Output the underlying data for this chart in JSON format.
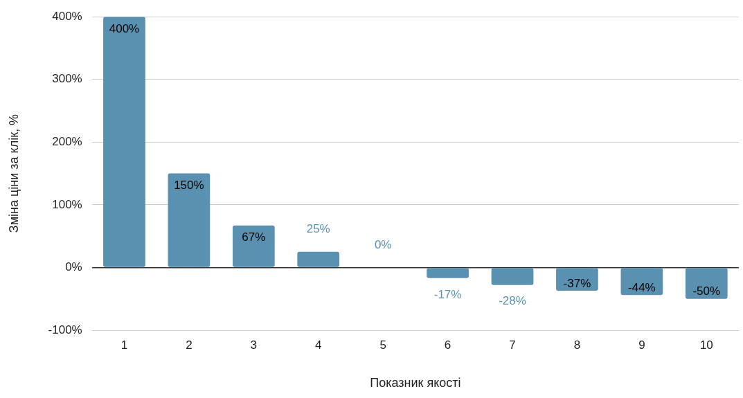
{
  "chart_data": {
    "type": "bar",
    "xlabel": "Показник якості",
    "ylabel": "Зміна ціни за клік, %",
    "categories": [
      "1",
      "2",
      "3",
      "4",
      "5",
      "6",
      "7",
      "8",
      "9",
      "10"
    ],
    "values": [
      400,
      150,
      67,
      25,
      0,
      -17,
      -28,
      -37,
      -44,
      -50
    ],
    "value_labels": [
      "400%",
      "150%",
      "67%",
      "25%",
      "0%",
      "-17%",
      "-28%",
      "-37%",
      "-44%",
      "-50%"
    ],
    "color": "#5a91b0",
    "ylim": [
      -100,
      400
    ],
    "yticks": [
      {
        "value": -100,
        "label": "-100%"
      },
      {
        "value": 0,
        "label": "0%"
      },
      {
        "value": 100,
        "label": "100%"
      },
      {
        "value": 200,
        "label": "200%"
      },
      {
        "value": 300,
        "label": "300%"
      },
      {
        "value": 400,
        "label": "400%"
      }
    ],
    "grid": "y",
    "legend": false
  }
}
